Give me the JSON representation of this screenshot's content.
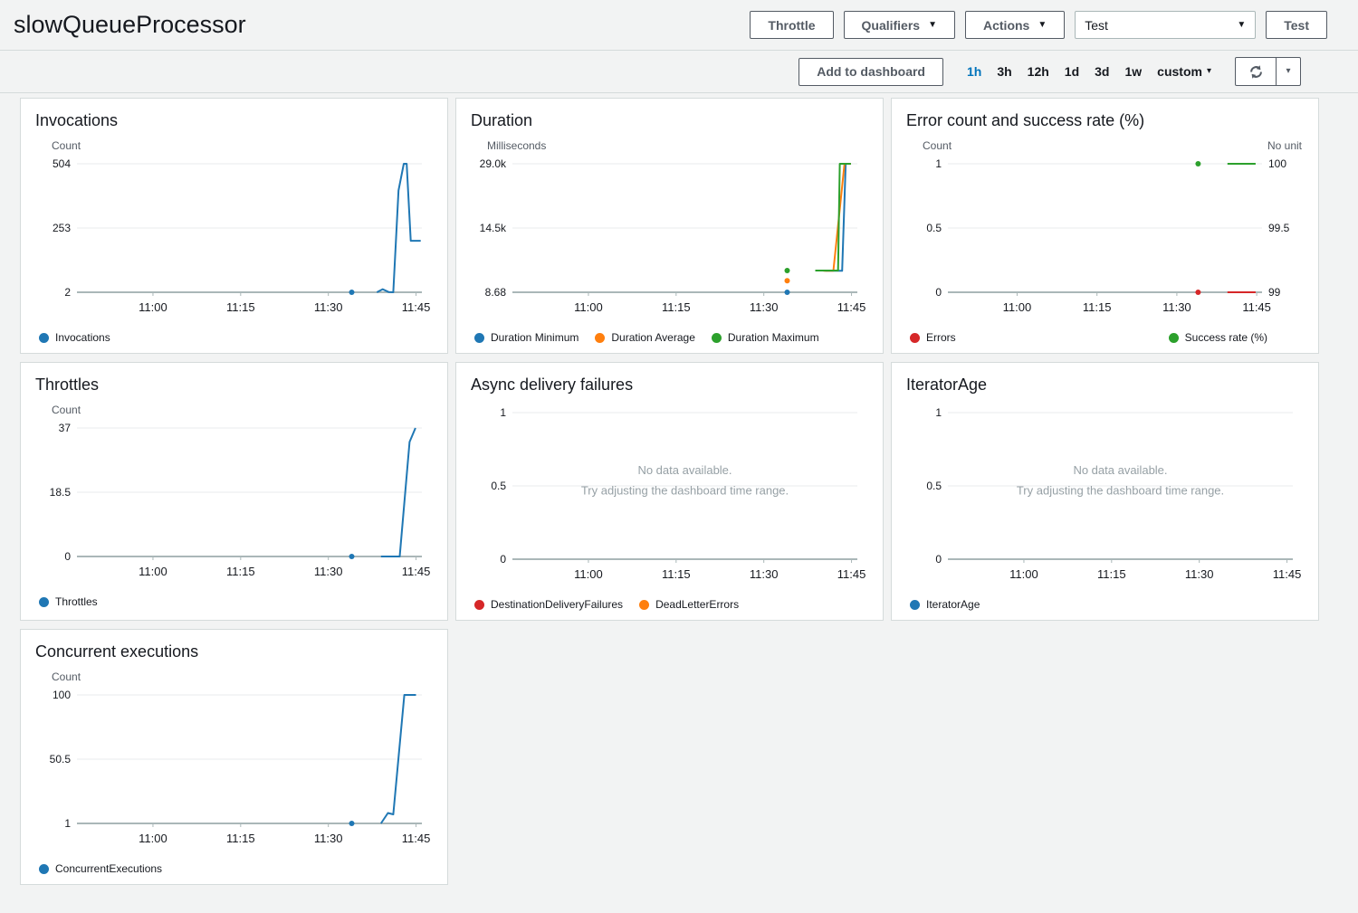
{
  "header": {
    "title": "slowQueueProcessor",
    "throttle_label": "Throttle",
    "qualifiers_label": "Qualifiers",
    "actions_label": "Actions",
    "test_select_value": "Test",
    "test_button_label": "Test"
  },
  "toolbar": {
    "add_to_dashboard_label": "Add to dashboard",
    "ranges": [
      "1h",
      "3h",
      "12h",
      "1d",
      "3d",
      "1w"
    ],
    "selected_range": "1h",
    "custom_label": "custom"
  },
  "colors": {
    "blue": "#1f77b4",
    "orange": "#ff7f0e",
    "green": "#2ca02c",
    "red": "#d62728",
    "link_blue": "#0073bb",
    "axis": "#aab7b8",
    "gridline": "#e9ebed"
  },
  "chart_data": [
    {
      "id": "invocations",
      "type": "line",
      "title": "Invocations",
      "unit_left": "Count",
      "xlim": [
        "10:47",
        "11:46"
      ],
      "xticks": [
        "11:00",
        "11:15",
        "11:30",
        "11:45"
      ],
      "ylim": [
        2,
        504
      ],
      "yticks": [
        [
          504,
          "504"
        ],
        [
          253,
          "253"
        ],
        [
          2,
          "2"
        ]
      ],
      "legend": [
        {
          "label": "Invocations",
          "color": "#1f77b4"
        }
      ],
      "series": [
        {
          "name": "Invocations",
          "color": "#1f77b4",
          "dots": [
            [
              "11:34",
              2
            ]
          ],
          "points": [
            [
              "11:38.3",
              2
            ],
            [
              "11:39.3",
              14
            ],
            [
              "11:40.3",
              3
            ],
            [
              "11:41.1",
              2
            ],
            [
              "11:42.0",
              400
            ],
            [
              "11:42.9",
              504
            ],
            [
              "11:43.4",
              504
            ],
            [
              "11:44.1",
              203
            ],
            [
              "11:45.8",
              203
            ]
          ]
        }
      ]
    },
    {
      "id": "duration",
      "type": "line",
      "title": "Duration",
      "unit_left": "Milliseconds",
      "xlim": [
        "10:47",
        "11:46"
      ],
      "xticks": [
        "11:00",
        "11:15",
        "11:30",
        "11:45"
      ],
      "ylim": [
        8.68,
        29000
      ],
      "yticks": [
        [
          29000,
          "29.0k"
        ],
        [
          14504,
          "14.5k"
        ],
        [
          8.68,
          "8.68"
        ]
      ],
      "legend": [
        {
          "label": "Duration Minimum",
          "color": "#1f77b4"
        },
        {
          "label": "Duration Average",
          "color": "#ff7f0e"
        },
        {
          "label": "Duration Maximum",
          "color": "#2ca02c"
        }
      ],
      "series": [
        {
          "name": "Duration Minimum",
          "color": "#1f77b4",
          "dots": [
            [
              "11:34",
              8.68
            ]
          ],
          "points": [
            [
              "11:40.5",
              4850
            ],
            [
              "11:43.4",
              4850
            ],
            [
              "11:44.0",
              29000
            ],
            [
              "11:44.9",
              29000
            ]
          ]
        },
        {
          "name": "Duration Average",
          "color": "#ff7f0e",
          "dots": [
            [
              "11:34",
              2600
            ]
          ],
          "points": [
            [
              "11:40.2",
              4850
            ],
            [
              "11:41.9",
              4850
            ],
            [
              "11:43.8",
              29000
            ],
            [
              "11:44.9",
              29000
            ]
          ]
        },
        {
          "name": "Duration Maximum",
          "color": "#2ca02c",
          "dots": [
            [
              "11:34",
              4900
            ]
          ],
          "points": [
            [
              "11:38.8",
              4900
            ],
            [
              "11:42.7",
              4900
            ],
            [
              "11:43.0",
              29000
            ],
            [
              "11:44.9",
              29000
            ]
          ]
        }
      ]
    },
    {
      "id": "error-count-success-rate",
      "type": "line",
      "title": "Error count and success rate (%)",
      "unit_left": "Count",
      "unit_right": "No unit",
      "xlim": [
        "10:47",
        "11:46"
      ],
      "xticks": [
        "11:00",
        "11:15",
        "11:30",
        "11:45"
      ],
      "ylim": [
        0,
        1
      ],
      "yticks": [
        [
          1,
          "1"
        ],
        [
          0.5,
          "0.5"
        ],
        [
          0,
          "0"
        ]
      ],
      "ylim_right": [
        99,
        100
      ],
      "yticks_right": [
        [
          100,
          "100"
        ],
        [
          99.5,
          "99.5"
        ],
        [
          99,
          "99"
        ]
      ],
      "legend_split": true,
      "legend": [
        {
          "label": "Errors",
          "color": "#d62728"
        },
        {
          "label": "Success rate (%)",
          "color": "#2ca02c"
        }
      ],
      "series": [
        {
          "name": "Errors",
          "color": "#d62728",
          "dots": [
            [
              "11:34",
              0
            ]
          ],
          "points": [
            [
              "11:39.5",
              0
            ],
            [
              "11:44.8",
              0
            ]
          ]
        },
        {
          "name": "Success rate (%)",
          "color": "#2ca02c",
          "axis": "right",
          "dots": [
            [
              "11:34",
              100
            ]
          ],
          "points": [
            [
              "11:39.5",
              100
            ],
            [
              "11:44.8",
              100
            ]
          ]
        }
      ]
    },
    {
      "id": "throttles",
      "type": "line",
      "title": "Throttles",
      "unit_left": "Count",
      "xlim": [
        "10:47",
        "11:46"
      ],
      "xticks": [
        "11:00",
        "11:15",
        "11:30",
        "11:45"
      ],
      "ylim": [
        0,
        37
      ],
      "yticks": [
        [
          37,
          "37"
        ],
        [
          18.5,
          "18.5"
        ],
        [
          0,
          "0"
        ]
      ],
      "legend": [
        {
          "label": "Throttles",
          "color": "#1f77b4"
        }
      ],
      "series": [
        {
          "name": "Throttles",
          "color": "#1f77b4",
          "dots": [
            [
              "11:34",
              0
            ]
          ],
          "points": [
            [
              "11:39.0",
              0
            ],
            [
              "11:42.2",
              0
            ],
            [
              "11:43.9",
              33
            ],
            [
              "11:44.9",
              37
            ]
          ]
        }
      ]
    },
    {
      "id": "async-delivery-failures",
      "type": "line",
      "title": "Async delivery failures",
      "xlim": [
        "10:47",
        "11:46"
      ],
      "xticks": [
        "11:00",
        "11:15",
        "11:30",
        "11:45"
      ],
      "ylim": [
        0,
        1
      ],
      "yticks": [
        [
          1,
          "1"
        ],
        [
          0.5,
          "0.5"
        ],
        [
          0,
          "0"
        ]
      ],
      "empty_message": [
        "No data available.",
        "Try adjusting the dashboard time range."
      ],
      "legend": [
        {
          "label": "DestinationDeliveryFailures",
          "color": "#d62728"
        },
        {
          "label": "DeadLetterErrors",
          "color": "#ff7f0e"
        }
      ]
    },
    {
      "id": "iterator-age",
      "type": "line",
      "title": "IteratorAge",
      "xlim": [
        "10:47",
        "11:46"
      ],
      "xticks": [
        "11:00",
        "11:15",
        "11:30",
        "11:45"
      ],
      "ylim": [
        0,
        1
      ],
      "yticks": [
        [
          1,
          "1"
        ],
        [
          0.5,
          "0.5"
        ],
        [
          0,
          "0"
        ]
      ],
      "empty_message": [
        "No data available.",
        "Try adjusting the dashboard time range."
      ],
      "legend": [
        {
          "label": "IteratorAge",
          "color": "#1f77b4"
        }
      ]
    },
    {
      "id": "concurrent-executions",
      "type": "line",
      "title": "Concurrent executions",
      "unit_left": "Count",
      "xlim": [
        "10:47",
        "11:46"
      ],
      "xticks": [
        "11:00",
        "11:15",
        "11:30",
        "11:45"
      ],
      "ylim": [
        1,
        100
      ],
      "yticks": [
        [
          100,
          "100"
        ],
        [
          50.5,
          "50.5"
        ],
        [
          1,
          "1"
        ]
      ],
      "legend": [
        {
          "label": "ConcurrentExecutions",
          "color": "#1f77b4"
        }
      ],
      "series": [
        {
          "name": "ConcurrentExecutions",
          "color": "#1f77b4",
          "dots": [
            [
              "11:34",
              1
            ]
          ],
          "points": [
            [
              "11:39.0",
              1
            ],
            [
              "11:40.2",
              9
            ],
            [
              "11:41.1",
              8
            ],
            [
              "11:43.0",
              100
            ],
            [
              "11:45.0",
              100
            ]
          ]
        }
      ]
    }
  ]
}
